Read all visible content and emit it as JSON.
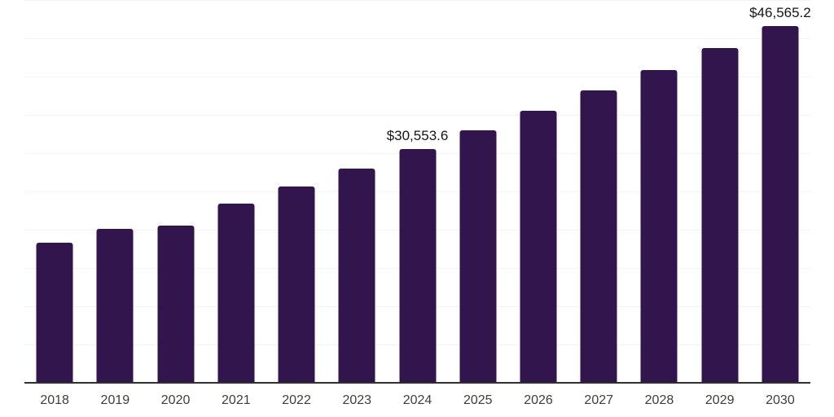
{
  "chart_data": {
    "type": "bar",
    "title": "",
    "xlabel": "",
    "ylabel": "",
    "categories": [
      "2018",
      "2019",
      "2020",
      "2021",
      "2022",
      "2023",
      "2024",
      "2025",
      "2026",
      "2027",
      "2028",
      "2029",
      "2030"
    ],
    "values": [
      18300,
      20150,
      20550,
      23400,
      25600,
      28000,
      30553.6,
      32950,
      35550,
      38200,
      40900,
      43700,
      46565.2
    ],
    "data_labels": [
      "",
      "",
      "",
      "",
      "",
      "",
      "$30,553.6",
      "",
      "",
      "",
      "",
      "",
      "$46,565.2"
    ],
    "ylim": [
      0,
      50000
    ],
    "gridline_step": 5000,
    "grid": "horizontal-only",
    "legend": "none",
    "y_axis_tick_labels_visible": false,
    "colors": {
      "bar": "#31154c",
      "gridline": "#f2f2f2",
      "axis_line": "#2f2f2f",
      "x_tick_label": "#3d3d3d",
      "data_label": "#151515",
      "background": "#ffffff"
    }
  }
}
